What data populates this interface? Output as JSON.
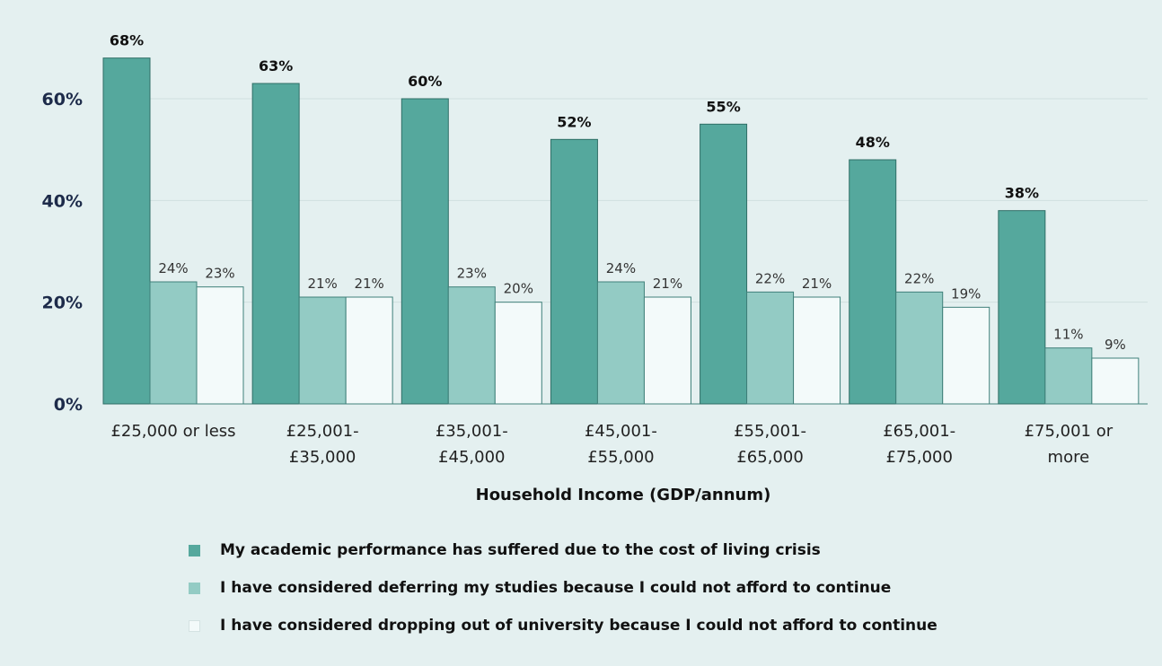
{
  "chart_data": {
    "type": "bar",
    "xlabel": "Household Income (GDP/annum)",
    "ylabel": "",
    "ylim": [
      0,
      70
    ],
    "yticks": [
      0,
      20,
      40,
      60
    ],
    "ytick_labels": [
      "0%",
      "20%",
      "40%",
      "60%"
    ],
    "grid": true,
    "legend_position": "bottom",
    "categories": [
      [
        "£25,000 or less"
      ],
      [
        "£25,001-",
        "£35,000"
      ],
      [
        "£35,001-",
        "£45,000"
      ],
      [
        "£45,001-",
        "£55,000"
      ],
      [
        "£55,001-",
        "£65,000"
      ],
      [
        "£65,001-",
        "£75,000"
      ],
      [
        "£75,001 or",
        "more"
      ]
    ],
    "series": [
      {
        "name": "My academic performance has suffered due to the cost of living crisis",
        "color": "#55a89d",
        "values": [
          68,
          63,
          60,
          52,
          55,
          48,
          38
        ],
        "labels": [
          "68%",
          "63%",
          "60%",
          "52%",
          "55%",
          "48%",
          "38%"
        ]
      },
      {
        "name": "I have considered deferring my studies because I could not afford to continue",
        "color": "#93cbc4",
        "values": [
          24,
          21,
          23,
          24,
          22,
          22,
          11
        ],
        "labels": [
          "24%",
          "21%",
          "23%",
          "24%",
          "22%",
          "22%",
          "11%"
        ]
      },
      {
        "name": "I have considered dropping out of university because I could not afford to continue",
        "color": "#f3fafa",
        "values": [
          23,
          21,
          20,
          21,
          21,
          19,
          9
        ],
        "labels": [
          "23%",
          "21%",
          "20%",
          "21%",
          "21%",
          "19%",
          "9%"
        ]
      }
    ]
  }
}
